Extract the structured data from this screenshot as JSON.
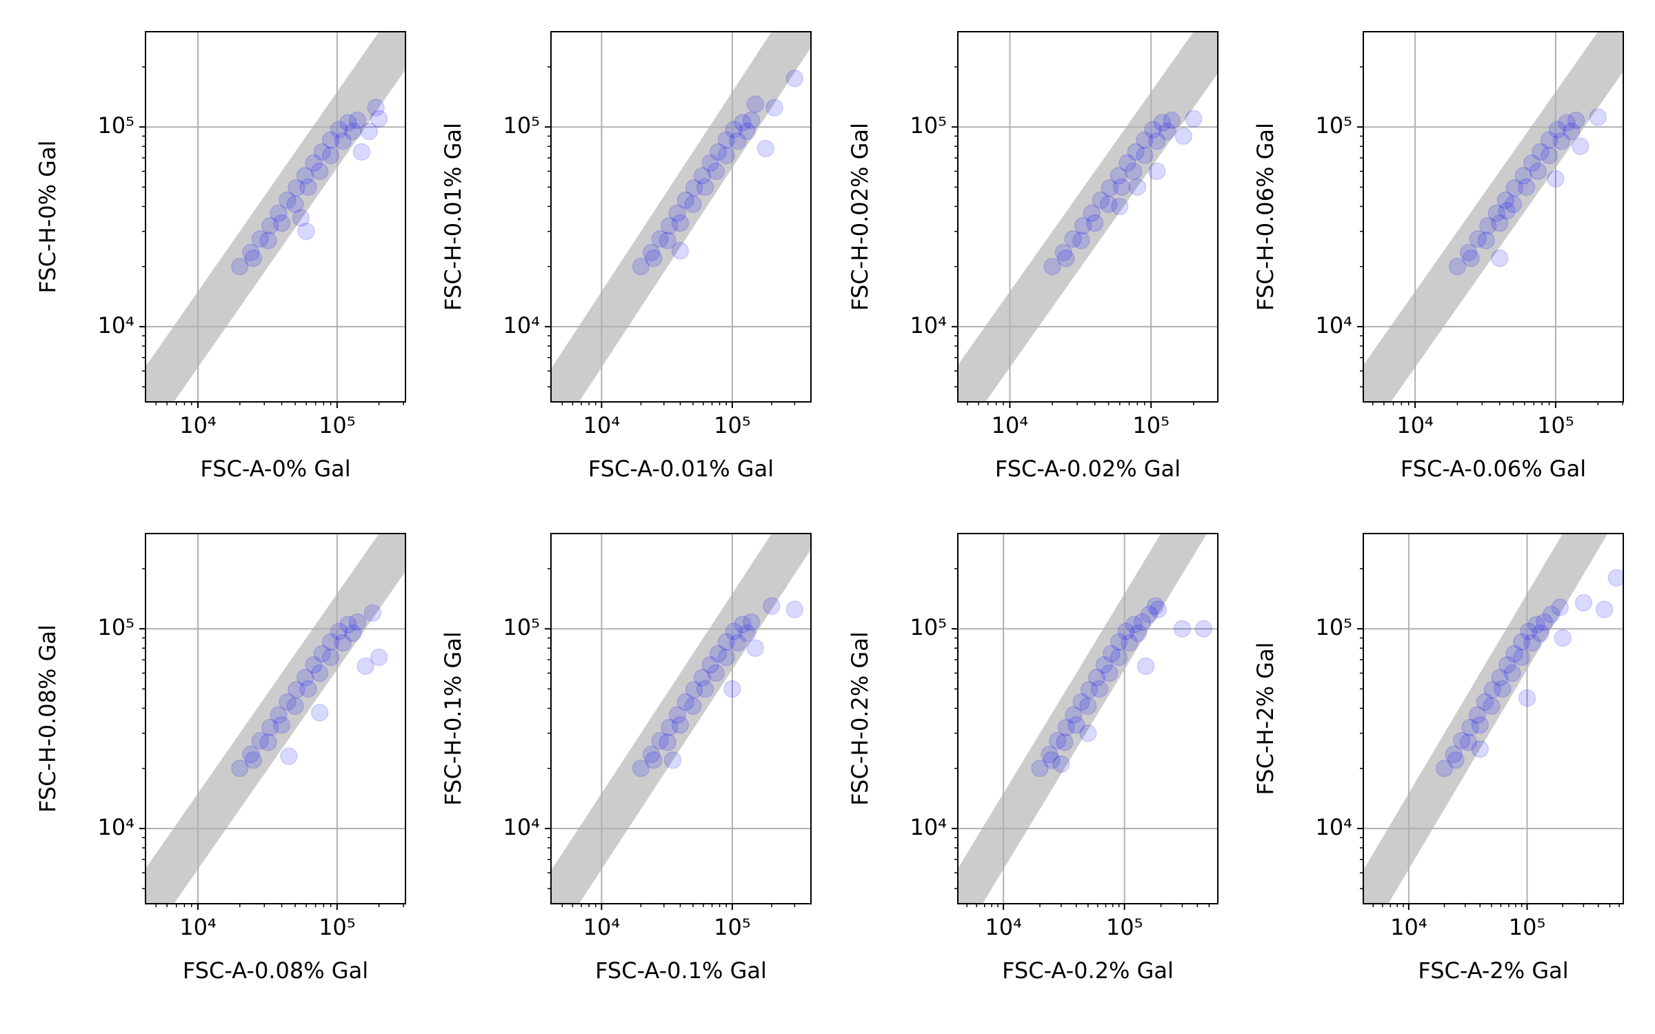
{
  "chart_data": [
    {
      "type": "scatter",
      "xlabel": "FSC-A-0% Gal",
      "ylabel": "FSC-H-0% Gal",
      "xscale": "log",
      "yscale": "log",
      "grid": true,
      "color": "#0000ff",
      "opacity": 0.15,
      "xlim": [
        4200,
        310000
      ],
      "ylim": [
        4200,
        300000
      ],
      "xticks": [
        {
          "value": 10000,
          "label": "10⁴"
        },
        {
          "value": 100000,
          "label": "10⁵"
        }
      ],
      "yticks": [
        {
          "value": 10000,
          "label": "10⁴"
        },
        {
          "value": 100000,
          "label": "10⁵"
        }
      ],
      "x": [
        20000,
        24000,
        28000,
        33000,
        38000,
        44000,
        51000,
        59000,
        68000,
        78000,
        90000,
        103000,
        120000,
        140000,
        25000,
        32000,
        40000,
        50000,
        62000,
        75000,
        90000,
        110000,
        130000,
        150000,
        200000,
        190000,
        60000,
        55000,
        170000
      ],
      "y": [
        20000,
        23500,
        27500,
        32000,
        37000,
        43000,
        49500,
        57000,
        66000,
        75000,
        86000,
        97000,
        105000,
        108000,
        22000,
        27000,
        33000,
        41000,
        50000,
        60000,
        72000,
        85000,
        95000,
        75000,
        110000,
        125000,
        30000,
        35000,
        95000
      ]
    },
    {
      "type": "scatter",
      "xlabel": "FSC-A-0.01% Gal",
      "ylabel": "FSC-H-0.01% Gal",
      "xscale": "log",
      "yscale": "log",
      "grid": true,
      "color": "#0000ff",
      "opacity": 0.15,
      "xlim": [
        4100,
        400000
      ],
      "ylim": [
        4200,
        300000
      ],
      "xticks": [
        {
          "value": 10000,
          "label": "10⁴"
        },
        {
          "value": 100000,
          "label": "10⁵"
        }
      ],
      "yticks": [
        {
          "value": 10000,
          "label": "10⁴"
        },
        {
          "value": 100000,
          "label": "10⁵"
        }
      ],
      "x": [
        20000,
        24000,
        28000,
        33000,
        38000,
        44000,
        51000,
        59000,
        68000,
        78000,
        90000,
        103000,
        120000,
        140000,
        25000,
        32000,
        40000,
        50000,
        62000,
        75000,
        90000,
        110000,
        130000,
        300000,
        180000,
        210000,
        40000,
        150000
      ],
      "y": [
        20000,
        23500,
        27500,
        32000,
        37000,
        43000,
        49500,
        57000,
        66000,
        75000,
        86000,
        97000,
        105000,
        108000,
        22000,
        27000,
        33000,
        41000,
        50000,
        60000,
        72000,
        85000,
        95000,
        175000,
        78000,
        125000,
        24000,
        130000
      ]
    },
    {
      "type": "scatter",
      "xlabel": "FSC-A-0.02% Gal",
      "ylabel": "FSC-H-0.02% Gal",
      "xscale": "log",
      "yscale": "log",
      "grid": true,
      "color": "#0000ff",
      "opacity": 0.15,
      "xlim": [
        4280,
        297000
      ],
      "ylim": [
        4200,
        300000
      ],
      "xticks": [
        {
          "value": 10000,
          "label": "10⁴"
        },
        {
          "value": 100000,
          "label": "10⁵"
        }
      ],
      "yticks": [
        {
          "value": 10000,
          "label": "10⁴"
        },
        {
          "value": 100000,
          "label": "10⁵"
        }
      ],
      "x": [
        20000,
        24000,
        28000,
        33000,
        38000,
        44000,
        51000,
        59000,
        68000,
        78000,
        90000,
        103000,
        120000,
        140000,
        25000,
        32000,
        40000,
        50000,
        62000,
        75000,
        90000,
        110000,
        130000,
        200000,
        170000,
        80000,
        60000,
        110000
      ],
      "y": [
        20000,
        23500,
        27500,
        32000,
        37000,
        43000,
        49500,
        57000,
        66000,
        75000,
        86000,
        97000,
        105000,
        108000,
        22000,
        27000,
        33000,
        41000,
        50000,
        60000,
        72000,
        85000,
        95000,
        110000,
        90000,
        50000,
        40000,
        60000
      ]
    },
    {
      "type": "scatter",
      "xlabel": "FSC-A-0.06% Gal",
      "ylabel": "FSC-H-0.06% Gal",
      "xscale": "log",
      "yscale": "log",
      "grid": true,
      "color": "#0000ff",
      "opacity": 0.15,
      "xlim": [
        4280,
        303000
      ],
      "ylim": [
        4200,
        300000
      ],
      "xticks": [
        {
          "value": 10000,
          "label": "10⁴"
        },
        {
          "value": 100000,
          "label": "10⁵"
        }
      ],
      "yticks": [
        {
          "value": 10000,
          "label": "10⁴"
        },
        {
          "value": 100000,
          "label": "10⁵"
        }
      ],
      "x": [
        20000,
        24000,
        28000,
        33000,
        38000,
        44000,
        51000,
        59000,
        68000,
        78000,
        90000,
        103000,
        120000,
        140000,
        25000,
        32000,
        40000,
        50000,
        62000,
        75000,
        90000,
        110000,
        130000,
        200000,
        150000,
        40000,
        45000,
        100000
      ],
      "y": [
        20000,
        23500,
        27500,
        32000,
        37000,
        43000,
        49500,
        57000,
        66000,
        75000,
        86000,
        97000,
        105000,
        108000,
        22000,
        27000,
        33000,
        41000,
        50000,
        60000,
        72000,
        85000,
        95000,
        112000,
        80000,
        22000,
        38000,
        55000
      ]
    },
    {
      "type": "scatter",
      "xlabel": "FSC-A-0.08% Gal",
      "ylabel": "FSC-H-0.08% Gal",
      "xscale": "log",
      "yscale": "log",
      "grid": true,
      "color": "#0000ff",
      "opacity": 0.15,
      "xlim": [
        4200,
        310000
      ],
      "ylim": [
        4200,
        300000
      ],
      "xticks": [
        {
          "value": 10000,
          "label": "10⁴"
        },
        {
          "value": 100000,
          "label": "10⁵"
        }
      ],
      "yticks": [
        {
          "value": 10000,
          "label": "10⁴"
        },
        {
          "value": 100000,
          "label": "10⁵"
        }
      ],
      "x": [
        20000,
        24000,
        28000,
        33000,
        38000,
        44000,
        51000,
        59000,
        68000,
        78000,
        90000,
        103000,
        120000,
        140000,
        25000,
        32000,
        40000,
        50000,
        62000,
        75000,
        90000,
        110000,
        130000,
        200000,
        160000,
        75000,
        45000,
        180000
      ],
      "y": [
        20000,
        23500,
        27500,
        32000,
        37000,
        43000,
        49500,
        57000,
        66000,
        75000,
        86000,
        97000,
        105000,
        108000,
        22000,
        27000,
        33000,
        41000,
        50000,
        60000,
        72000,
        85000,
        95000,
        72000,
        65000,
        38000,
        23000,
        120000
      ]
    },
    {
      "type": "scatter",
      "xlabel": "FSC-A-0.1% Gal",
      "ylabel": "FSC-H-0.1% Gal",
      "xscale": "log",
      "yscale": "log",
      "grid": true,
      "color": "#0000ff",
      "opacity": 0.15,
      "xlim": [
        4100,
        400000
      ],
      "ylim": [
        4200,
        300000
      ],
      "xticks": [
        {
          "value": 10000,
          "label": "10⁴"
        },
        {
          "value": 100000,
          "label": "10⁵"
        }
      ],
      "yticks": [
        {
          "value": 10000,
          "label": "10⁴"
        },
        {
          "value": 100000,
          "label": "10⁵"
        }
      ],
      "x": [
        20000,
        24000,
        28000,
        33000,
        38000,
        44000,
        51000,
        59000,
        68000,
        78000,
        90000,
        103000,
        120000,
        140000,
        25000,
        32000,
        40000,
        50000,
        62000,
        75000,
        90000,
        110000,
        130000,
        300000,
        200000,
        150000,
        100000,
        35000
      ],
      "y": [
        20000,
        23500,
        27500,
        32000,
        37000,
        43000,
        49500,
        57000,
        66000,
        75000,
        86000,
        97000,
        105000,
        108000,
        22000,
        27000,
        33000,
        41000,
        50000,
        60000,
        72000,
        85000,
        95000,
        125000,
        130000,
        80000,
        50000,
        22000
      ]
    },
    {
      "type": "scatter",
      "xlabel": "FSC-A-0.2% Gal",
      "ylabel": "FSC-H-0.2% Gal",
      "xscale": "log",
      "yscale": "log",
      "grid": true,
      "color": "#0000ff",
      "opacity": 0.15,
      "xlim": [
        4200,
        590000
      ],
      "ylim": [
        4200,
        300000
      ],
      "xticks": [
        {
          "value": 10000,
          "label": "10⁴"
        },
        {
          "value": 100000,
          "label": "10⁵"
        }
      ],
      "yticks": [
        {
          "value": 10000,
          "label": "10⁴"
        },
        {
          "value": 100000,
          "label": "10⁵"
        }
      ],
      "x": [
        20000,
        24000,
        28000,
        33000,
        38000,
        44000,
        51000,
        59000,
        68000,
        78000,
        90000,
        103000,
        120000,
        140000,
        25000,
        32000,
        40000,
        50000,
        62000,
        75000,
        90000,
        110000,
        130000,
        160000,
        190000,
        450000,
        300000,
        180000,
        150000,
        50000,
        30000
      ],
      "y": [
        20000,
        23500,
        27500,
        32000,
        37000,
        43000,
        49500,
        57000,
        66000,
        75000,
        86000,
        97000,
        105000,
        108000,
        22000,
        27000,
        33000,
        41000,
        50000,
        60000,
        72000,
        85000,
        95000,
        118000,
        125000,
        100000,
        100000,
        130000,
        65000,
        30000,
        21000
      ]
    },
    {
      "type": "scatter",
      "xlabel": "FSC-A-2% Gal",
      "ylabel": "FSC-H-2% Gal",
      "xscale": "log",
      "yscale": "log",
      "grid": true,
      "color": "#0000ff",
      "opacity": 0.15,
      "xlim": [
        4130,
        650000
      ],
      "ylim": [
        4200,
        300000
      ],
      "xticks": [
        {
          "value": 10000,
          "label": "10⁴"
        },
        {
          "value": 100000,
          "label": "10⁵"
        }
      ],
      "yticks": [
        {
          "value": 10000,
          "label": "10⁴"
        },
        {
          "value": 100000,
          "label": "10⁵"
        }
      ],
      "x": [
        20000,
        24000,
        28000,
        33000,
        38000,
        44000,
        51000,
        59000,
        68000,
        78000,
        90000,
        103000,
        120000,
        140000,
        25000,
        32000,
        40000,
        50000,
        62000,
        75000,
        90000,
        110000,
        130000,
        160000,
        190000,
        570000,
        450000,
        300000,
        200000,
        100000,
        40000
      ],
      "y": [
        20000,
        23500,
        27500,
        32000,
        37000,
        43000,
        49500,
        57000,
        66000,
        75000,
        86000,
        97000,
        105000,
        108000,
        22000,
        27000,
        33000,
        41000,
        50000,
        60000,
        72000,
        85000,
        95000,
        118000,
        128000,
        180000,
        125000,
        135000,
        90000,
        45000,
        25000
      ]
    }
  ]
}
